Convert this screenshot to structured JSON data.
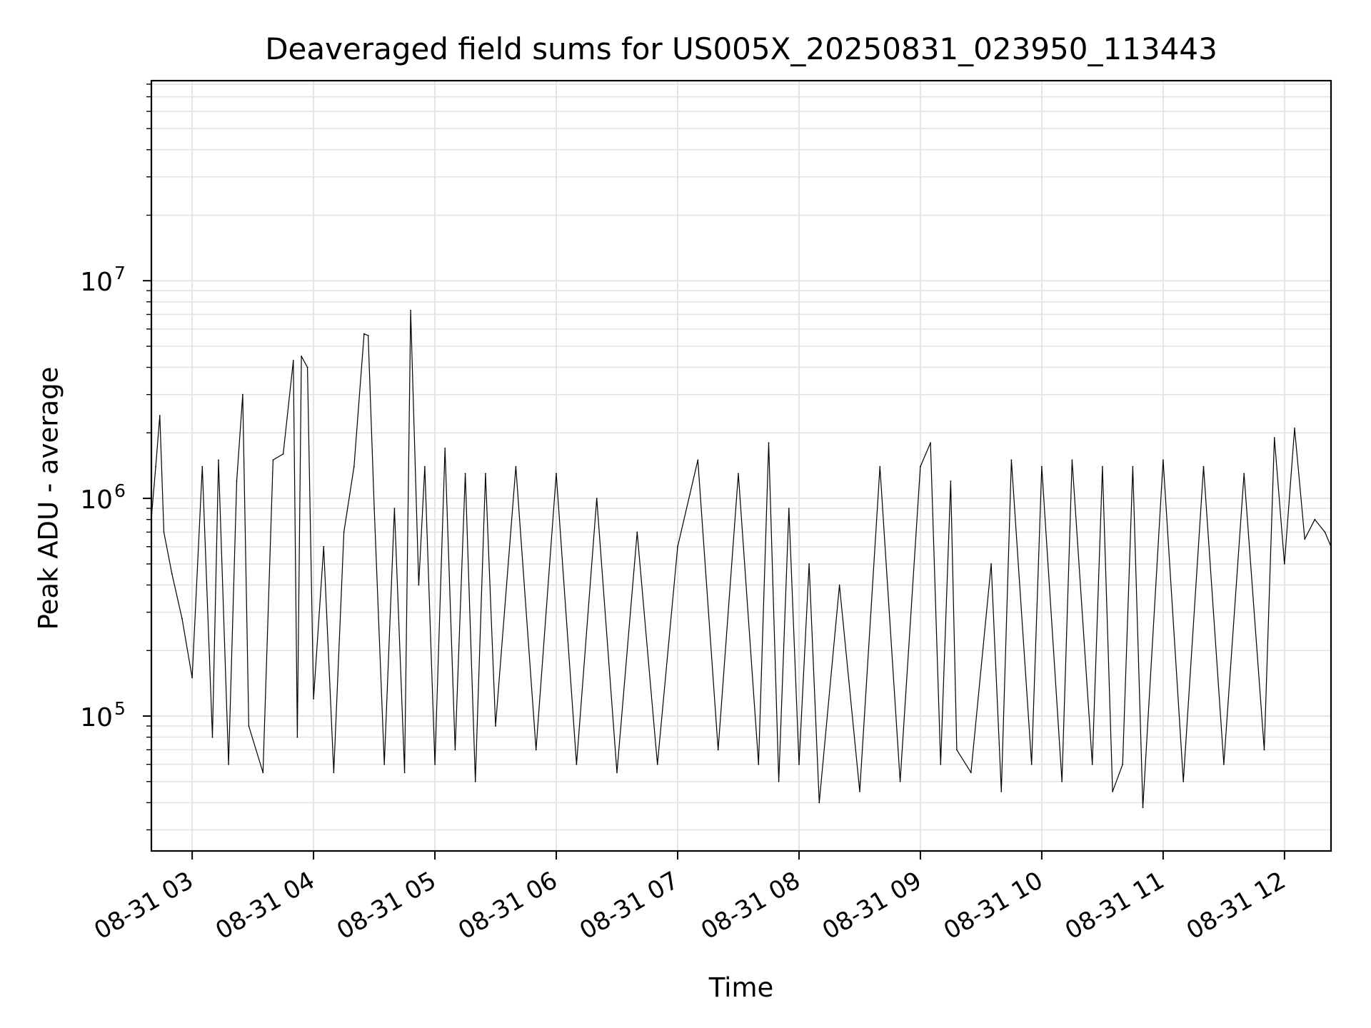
{
  "chart_data": {
    "type": "line",
    "title": "Deaveraged field sums for US005X_20250831_023950_113443",
    "xlabel": "Time",
    "ylabel": "Peak ADU - average",
    "x_range": [
      "2025-08-31 02:39:50",
      "2025-08-31 12:23:00"
    ],
    "ylim": [
      24000,
      83000000
    ],
    "y_scale": "log",
    "grid": true,
    "x_tick_labels": [
      "08-31 03",
      "08-31 04",
      "08-31 05",
      "08-31 06",
      "08-31 07",
      "08-31 08",
      "08-31 09",
      "08-31 10",
      "08-31 11",
      "08-31 12"
    ],
    "x_tick_hours": [
      3,
      4,
      5,
      6,
      7,
      8,
      9,
      10,
      11,
      12
    ],
    "y_tick_labels": [
      {
        "exp": 5,
        "base": "10",
        "sup": "5"
      },
      {
        "exp": 6,
        "base": "10",
        "sup": "6"
      },
      {
        "exp": 7,
        "base": "10",
        "sup": "7"
      }
    ],
    "line_color": "#000000",
    "grid_color": "#e4e4e4",
    "series": [
      {
        "points": [
          [
            "02:40",
            850000
          ],
          [
            "02:42",
            1400000
          ],
          [
            "02:44",
            2400000
          ],
          [
            "02:46",
            700000
          ],
          [
            "02:50",
            450000
          ],
          [
            "02:55",
            280000
          ],
          [
            "03:00",
            150000
          ],
          [
            "03:05",
            1400000
          ],
          [
            "03:10",
            80000
          ],
          [
            "03:13",
            1500000
          ],
          [
            "03:18",
            60000
          ],
          [
            "03:22",
            1200000
          ],
          [
            "03:25",
            3000000
          ],
          [
            "03:28",
            90000
          ],
          [
            "03:35",
            55000
          ],
          [
            "03:40",
            1500000
          ],
          [
            "03:45",
            1600000
          ],
          [
            "03:50",
            4300000
          ],
          [
            "03:52",
            80000
          ],
          [
            "03:54",
            4500000
          ],
          [
            "03:57",
            4000000
          ],
          [
            "04:00",
            120000
          ],
          [
            "04:05",
            600000
          ],
          [
            "04:10",
            55000
          ],
          [
            "04:15",
            700000
          ],
          [
            "04:20",
            1400000
          ],
          [
            "04:25",
            5700000
          ],
          [
            "04:27",
            5600000
          ],
          [
            "04:30",
            900000
          ],
          [
            "04:35",
            60000
          ],
          [
            "04:40",
            900000
          ],
          [
            "04:45",
            55000
          ],
          [
            "04:48",
            7300000
          ],
          [
            "04:52",
            400000
          ],
          [
            "04:55",
            1400000
          ],
          [
            "05:00",
            60000
          ],
          [
            "05:05",
            1700000
          ],
          [
            "05:10",
            70000
          ],
          [
            "05:15",
            1300000
          ],
          [
            "05:20",
            50000
          ],
          [
            "05:25",
            1300000
          ],
          [
            "05:30",
            90000
          ],
          [
            "05:40",
            1400000
          ],
          [
            "05:50",
            70000
          ],
          [
            "06:00",
            1300000
          ],
          [
            "06:10",
            60000
          ],
          [
            "06:20",
            1000000
          ],
          [
            "06:30",
            55000
          ],
          [
            "06:40",
            700000
          ],
          [
            "06:50",
            60000
          ],
          [
            "07:00",
            600000
          ],
          [
            "07:10",
            1500000
          ],
          [
            "07:20",
            70000
          ],
          [
            "07:30",
            1300000
          ],
          [
            "07:40",
            60000
          ],
          [
            "07:45",
            1800000
          ],
          [
            "07:50",
            50000
          ],
          [
            "07:55",
            900000
          ],
          [
            "08:00",
            60000
          ],
          [
            "08:05",
            500000
          ],
          [
            "08:10",
            40000
          ],
          [
            "08:20",
            400000
          ],
          [
            "08:30",
            45000
          ],
          [
            "08:40",
            1400000
          ],
          [
            "08:50",
            50000
          ],
          [
            "09:00",
            1400000
          ],
          [
            "09:05",
            1800000
          ],
          [
            "09:10",
            60000
          ],
          [
            "09:15",
            1200000
          ],
          [
            "09:18",
            70000
          ],
          [
            "09:25",
            55000
          ],
          [
            "09:35",
            500000
          ],
          [
            "09:40",
            45000
          ],
          [
            "09:45",
            1500000
          ],
          [
            "09:55",
            60000
          ],
          [
            "10:00",
            1400000
          ],
          [
            "10:10",
            50000
          ],
          [
            "10:15",
            1500000
          ],
          [
            "10:25",
            60000
          ],
          [
            "10:30",
            1400000
          ],
          [
            "10:35",
            45000
          ],
          [
            "10:40",
            60000
          ],
          [
            "10:45",
            1400000
          ],
          [
            "10:50",
            38000
          ],
          [
            "11:00",
            1500000
          ],
          [
            "11:10",
            50000
          ],
          [
            "11:20",
            1400000
          ],
          [
            "11:30",
            60000
          ],
          [
            "11:40",
            1300000
          ],
          [
            "11:50",
            70000
          ],
          [
            "11:55",
            1900000
          ],
          [
            "12:00",
            500000
          ],
          [
            "12:05",
            2100000
          ],
          [
            "12:10",
            650000
          ],
          [
            "12:15",
            800000
          ],
          [
            "12:20",
            700000
          ],
          [
            "12:23",
            600000
          ]
        ]
      }
    ]
  }
}
